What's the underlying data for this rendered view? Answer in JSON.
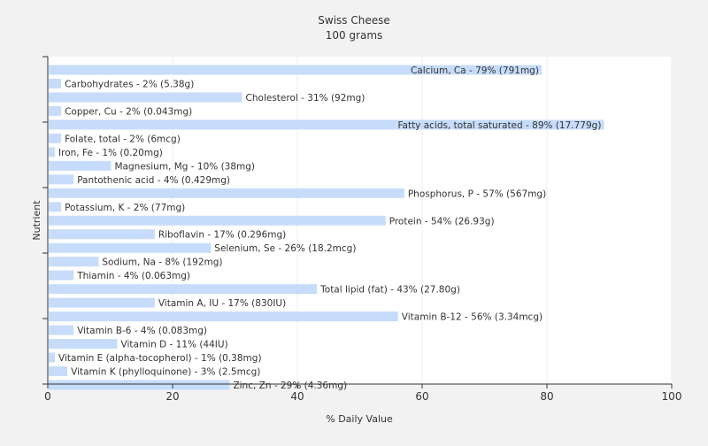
{
  "chart_data": {
    "type": "bar",
    "orientation": "horizontal",
    "title": "Swiss Cheese",
    "subtitle": "100 grams",
    "xlabel": "% Daily Value",
    "ylabel": "Nutrient",
    "xlim": [
      0,
      100
    ],
    "x_ticks": [
      0,
      20,
      40,
      60,
      80,
      100
    ],
    "grid": true,
    "legend": "none",
    "bar_color": "#c6dcfa",
    "bars": [
      {
        "label": "Calcium, Ca - 79% (791mg)",
        "value": 79
      },
      {
        "label": "Carbohydrates - 2% (5.38g)",
        "value": 2
      },
      {
        "label": "Cholesterol - 31% (92mg)",
        "value": 31
      },
      {
        "label": "Copper, Cu - 2% (0.043mg)",
        "value": 2
      },
      {
        "label": "Fatty acids, total saturated - 89% (17.779g)",
        "value": 89
      },
      {
        "label": "Folate, total - 2% (6mcg)",
        "value": 2
      },
      {
        "label": "Iron, Fe - 1% (0.20mg)",
        "value": 1
      },
      {
        "label": "Magnesium, Mg - 10% (38mg)",
        "value": 10
      },
      {
        "label": "Pantothenic acid - 4% (0.429mg)",
        "value": 4
      },
      {
        "label": "Phosphorus, P - 57% (567mg)",
        "value": 57
      },
      {
        "label": "Potassium, K - 2% (77mg)",
        "value": 2
      },
      {
        "label": "Protein - 54% (26.93g)",
        "value": 54
      },
      {
        "label": "Riboflavin - 17% (0.296mg)",
        "value": 17
      },
      {
        "label": "Selenium, Se - 26% (18.2mcg)",
        "value": 26
      },
      {
        "label": "Sodium, Na - 8% (192mg)",
        "value": 8
      },
      {
        "label": "Thiamin - 4% (0.063mg)",
        "value": 4
      },
      {
        "label": "Total lipid (fat) - 43% (27.80g)",
        "value": 43
      },
      {
        "label": "Vitamin A, IU - 17% (830IU)",
        "value": 17
      },
      {
        "label": "Vitamin B-12 - 56% (3.34mcg)",
        "value": 56
      },
      {
        "label": "Vitamin B-6 - 4% (0.083mg)",
        "value": 4
      },
      {
        "label": "Vitamin D - 11% (44IU)",
        "value": 11
      },
      {
        "label": "Vitamin E (alpha-tocopherol) - 1% (0.38mg)",
        "value": 1
      },
      {
        "label": "Vitamin K (phylloquinone) - 3% (2.5mcg)",
        "value": 3
      },
      {
        "label": "Zinc, Zn - 29% (4.36mg)",
        "value": 29
      }
    ]
  }
}
